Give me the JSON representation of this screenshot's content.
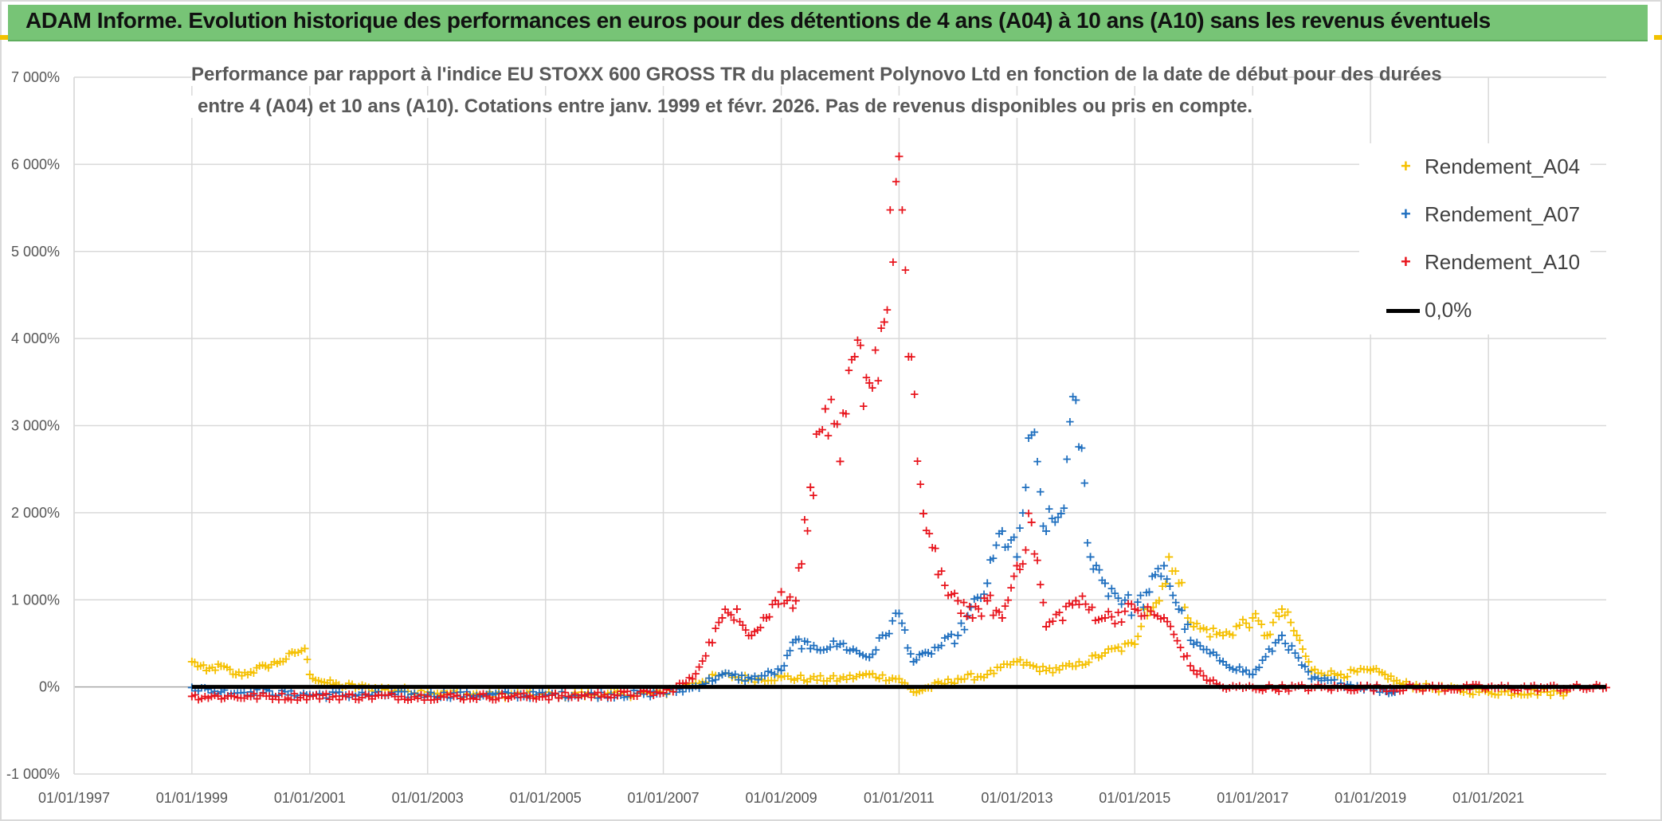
{
  "header": {
    "title": "ADAM Informe. Evolution historique des performances en euros pour des détentions de 4 ans (A04) à 10 ans (A10) sans les revenus éventuels"
  },
  "colors": {
    "header_bg": "#77c476",
    "a04": "#f5c000",
    "a07": "#1f6fbf",
    "a10": "#e8141c",
    "zero": "#000000",
    "grid": "#d9d9d9"
  },
  "chart_data": {
    "type": "scatter",
    "title_line1": "Performance par rapport à l'indice EU STOXX 600 GROSS TR  du placement Polynovo Ltd en fonction de la date de début pour des durées",
    "title_line2": "entre 4 (A04) et 10 ans (A10). Cotations entre janv. 1999 et févr. 2026. Pas de revenus disponibles ou pris en compte.",
    "xlabel": "",
    "ylabel": "",
    "xlim": [
      "1997-01-01",
      "2023-01-01"
    ],
    "ylim": [
      -1000,
      7000
    ],
    "y_ticks": [
      -1000,
      0,
      1000,
      2000,
      3000,
      4000,
      5000,
      6000,
      7000
    ],
    "y_tick_labels": [
      "-1 000%",
      "0%",
      "1 000%",
      "2 000%",
      "3 000%",
      "4 000%",
      "5 000%",
      "6 000%",
      "7 000%"
    ],
    "x_ticks": [
      "1997-01-01",
      "1999-01-01",
      "2001-01-01",
      "2003-01-01",
      "2005-01-01",
      "2007-01-01",
      "2009-01-01",
      "2011-01-01",
      "2013-01-01",
      "2015-01-01",
      "2017-01-01",
      "2019-01-01",
      "2021-01-01"
    ],
    "x_tick_labels": [
      "01/01/1997",
      "01/01/1999",
      "01/01/2001",
      "01/01/2003",
      "01/01/2005",
      "01/01/2007",
      "01/01/2009",
      "01/01/2011",
      "01/01/2013",
      "01/01/2015",
      "01/01/2017",
      "01/01/2019",
      "01/01/2021"
    ],
    "grid": "horizontal",
    "legend_position": "top-right",
    "series": [
      {
        "name": "Rendement_A04",
        "marker": "+",
        "color": "#f5c000",
        "x": [
          "1999-01-01",
          "1999-04-01",
          "1999-07-01",
          "1999-10-01",
          "2000-01-01",
          "2000-04-01",
          "2000-07-01",
          "2000-10-01",
          "2000-12-01",
          "2001-01-01",
          "2001-04-01",
          "2001-07-01",
          "2002-01-01",
          "2003-01-01",
          "2004-01-01",
          "2005-01-01",
          "2006-01-01",
          "2007-01-01",
          "2007-07-01",
          "2008-01-01",
          "2008-07-01",
          "2009-01-01",
          "2009-07-01",
          "2010-01-01",
          "2010-07-01",
          "2011-01-01",
          "2011-04-01",
          "2011-07-01",
          "2012-01-01",
          "2012-07-01",
          "2013-01-01",
          "2013-07-01",
          "2014-01-01",
          "2014-07-01",
          "2015-01-01",
          "2015-03-01",
          "2015-06-01",
          "2015-08-01",
          "2015-10-01",
          "2016-01-01",
          "2016-07-01",
          "2017-01-01",
          "2017-04-01",
          "2017-07-01",
          "2017-10-01",
          "2018-01-01",
          "2018-07-01",
          "2019-01-01",
          "2019-04-01",
          "2019-07-01",
          "2020-01-01",
          "2021-01-01",
          "2022-01-01",
          "2022-05-01"
        ],
        "y": [
          300,
          200,
          250,
          150,
          180,
          250,
          300,
          400,
          450,
          150,
          60,
          30,
          0,
          -50,
          -80,
          -80,
          -80,
          -60,
          50,
          150,
          100,
          120,
          100,
          100,
          150,
          100,
          -50,
          0,
          100,
          150,
          300,
          200,
          250,
          400,
          500,
          900,
          1000,
          1500,
          1200,
          700,
          600,
          800,
          600,
          900,
          600,
          200,
          150,
          200,
          150,
          50,
          0,
          -50,
          -50,
          -50
        ]
      },
      {
        "name": "Rendement_A07",
        "marker": "+",
        "color": "#1f6fbf",
        "x": [
          "1999-01-01",
          "1999-07-01",
          "2000-01-01",
          "2001-01-01",
          "2002-01-01",
          "2003-01-01",
          "2004-01-01",
          "2005-01-01",
          "2006-01-01",
          "2007-01-01",
          "2007-07-01",
          "2008-01-01",
          "2008-07-01",
          "2009-01-01",
          "2009-04-01",
          "2009-07-01",
          "2010-01-01",
          "2010-07-01",
          "2011-01-01",
          "2011-04-01",
          "2011-07-01",
          "2012-01-01",
          "2012-07-01",
          "2012-10-01",
          "2013-01-01",
          "2013-04-01",
          "2013-07-01",
          "2013-10-01",
          "2014-01-01",
          "2014-04-01",
          "2014-07-01",
          "2015-01-01",
          "2015-04-01",
          "2015-07-01",
          "2015-10-01",
          "2016-01-01",
          "2016-07-01",
          "2017-01-01",
          "2017-07-01",
          "2018-01-01",
          "2018-07-01",
          "2019-01-01",
          "2019-06-01"
        ],
        "y": [
          0,
          -50,
          -50,
          -80,
          -80,
          -80,
          -80,
          -80,
          -80,
          -60,
          0,
          150,
          100,
          200,
          550,
          450,
          500,
          350,
          850,
          300,
          400,
          600,
          1200,
          1800,
          1500,
          2900,
          1800,
          2000,
          3300,
          1500,
          1200,
          900,
          1100,
          1400,
          900,
          500,
          300,
          150,
          600,
          100,
          50,
          0,
          -50
        ]
      },
      {
        "name": "Rendement_A10",
        "marker": "+",
        "color": "#e8141c",
        "x": [
          "1999-01-01",
          "2000-01-01",
          "2001-01-01",
          "2002-01-01",
          "2003-01-01",
          "2004-01-01",
          "2005-01-01",
          "2006-01-01",
          "2007-01-01",
          "2007-07-01",
          "2008-01-01",
          "2008-04-01",
          "2008-07-01",
          "2008-10-01",
          "2009-01-01",
          "2009-04-01",
          "2009-07-01",
          "2009-10-01",
          "2010-01-01",
          "2010-04-01",
          "2010-07-01",
          "2010-10-01",
          "2011-01-01",
          "2011-03-01",
          "2011-06-01",
          "2011-09-01",
          "2012-01-01",
          "2012-04-01",
          "2012-07-01",
          "2012-10-01",
          "2013-01-01",
          "2013-04-01",
          "2013-07-01",
          "2014-01-01",
          "2014-07-01",
          "2015-01-01",
          "2015-07-01",
          "2016-01-01",
          "2016-07-01",
          "2017-01-01",
          "2018-01-01",
          "2019-01-01",
          "2020-01-01",
          "2021-01-01",
          "2022-01-01",
          "2023-01-01"
        ],
        "y": [
          -100,
          -100,
          -100,
          -100,
          -100,
          -100,
          -100,
          -80,
          -60,
          100,
          800,
          900,
          600,
          800,
          1100,
          1000,
          2300,
          3200,
          2600,
          3800,
          3500,
          4200,
          6100,
          3800,
          2000,
          1300,
          1000,
          800,
          1000,
          800,
          1400,
          1900,
          700,
          1000,
          800,
          900,
          800,
          200,
          0,
          0,
          0,
          0,
          0,
          0,
          0,
          0
        ]
      },
      {
        "name": "0,0%",
        "marker": "line",
        "color": "#000000",
        "x": [
          "1999-01-01",
          "2023-01-01"
        ],
        "y": [
          0,
          0
        ]
      }
    ]
  }
}
